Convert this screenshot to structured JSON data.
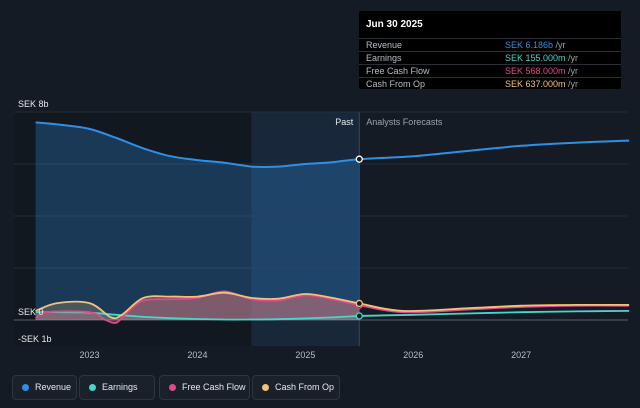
{
  "chart_data": {
    "type": "area",
    "y_axis_labels": [
      "SEK 8b",
      "SEK 0",
      "-SEK 1b"
    ],
    "x_ticks": [
      "2023",
      "2024",
      "2025",
      "2026",
      "2027"
    ],
    "ylim": [
      -1.0,
      8.0
    ],
    "xlim": [
      2022.3,
      2027.99
    ],
    "past_region_start": 2024.5,
    "past_forecast_split": 2025.5,
    "region_labels": {
      "past": "Past",
      "forecast": "Analysts Forecasts"
    },
    "grid": true,
    "series": [
      {
        "name": "Revenue",
        "color": "#2f8fe6",
        "x": [
          2022.5,
          2022.75,
          2023.0,
          2023.25,
          2023.5,
          2023.75,
          2024.0,
          2024.25,
          2024.5,
          2024.75,
          2025.0,
          2025.25,
          2025.5,
          2026.0,
          2026.5,
          2027.0,
          2027.5,
          2028.0
        ],
        "values": [
          7.6,
          7.5,
          7.35,
          7.0,
          6.6,
          6.3,
          6.15,
          6.05,
          5.9,
          5.9,
          6.0,
          6.07,
          6.186,
          6.3,
          6.5,
          6.7,
          6.82,
          6.9
        ]
      },
      {
        "name": "Earnings",
        "color": "#47d6c9",
        "x": [
          2022.5,
          2022.75,
          2023.0,
          2023.25,
          2023.5,
          2023.75,
          2024.0,
          2024.25,
          2024.5,
          2024.75,
          2025.0,
          2025.25,
          2025.5,
          2026.0,
          2026.5,
          2027.0,
          2027.5,
          2028.0
        ],
        "values": [
          0.3,
          0.3,
          0.28,
          0.2,
          0.12,
          0.07,
          0.04,
          0.02,
          0.02,
          0.03,
          0.06,
          0.1,
          0.155,
          0.2,
          0.25,
          0.3,
          0.33,
          0.35
        ]
      },
      {
        "name": "Free Cash Flow",
        "color": "#e0498a",
        "x": [
          2022.5,
          2022.6,
          2023.0,
          2023.15,
          2023.25,
          2023.35,
          2023.5,
          2023.75,
          2024.0,
          2024.25,
          2024.5,
          2024.75,
          2025.0,
          2025.25,
          2025.5,
          2025.9,
          2026.5,
          2027.0,
          2027.5,
          2028.0
        ],
        "values": [
          0.05,
          0.3,
          0.3,
          0.0,
          -0.1,
          0.3,
          0.75,
          0.8,
          0.85,
          1.1,
          0.8,
          0.75,
          0.95,
          0.8,
          0.568,
          0.3,
          0.4,
          0.5,
          0.55,
          0.55
        ]
      },
      {
        "name": "Cash From Op",
        "color": "#f0c27b",
        "x": [
          2022.5,
          2022.7,
          2023.0,
          2023.2,
          2023.3,
          2023.5,
          2023.75,
          2024.0,
          2024.25,
          2024.5,
          2024.75,
          2025.0,
          2025.25,
          2025.5,
          2025.9,
          2026.5,
          2027.0,
          2027.5,
          2028.0
        ],
        "values": [
          0.35,
          0.65,
          0.65,
          0.1,
          0.2,
          0.85,
          0.9,
          0.9,
          1.05,
          0.85,
          0.82,
          1.0,
          0.85,
          0.637,
          0.35,
          0.45,
          0.55,
          0.58,
          0.58
        ]
      }
    ],
    "tooltip": {
      "date": "Jun 30 2025",
      "rows": [
        {
          "label": "Revenue",
          "value": "SEK 6.186b",
          "unit": " /yr",
          "color": "#2f8fe6"
        },
        {
          "label": "Earnings",
          "value": "SEK 155.000m",
          "unit": " /yr",
          "color": "#47d6c9"
        },
        {
          "label": "Free Cash Flow",
          "value": "SEK 568.000m",
          "unit": " /yr",
          "color": "#e0498a"
        },
        {
          "label": "Cash From Op",
          "value": "SEK 637.000m",
          "unit": " /yr",
          "color": "#f0c27b"
        }
      ]
    }
  },
  "legend": [
    {
      "label": "Revenue",
      "color": "#2f8fe6"
    },
    {
      "label": "Earnings",
      "color": "#47d6c9"
    },
    {
      "label": "Free Cash Flow",
      "color": "#e0498a"
    },
    {
      "label": "Cash From Op",
      "color": "#f0c27b"
    }
  ]
}
